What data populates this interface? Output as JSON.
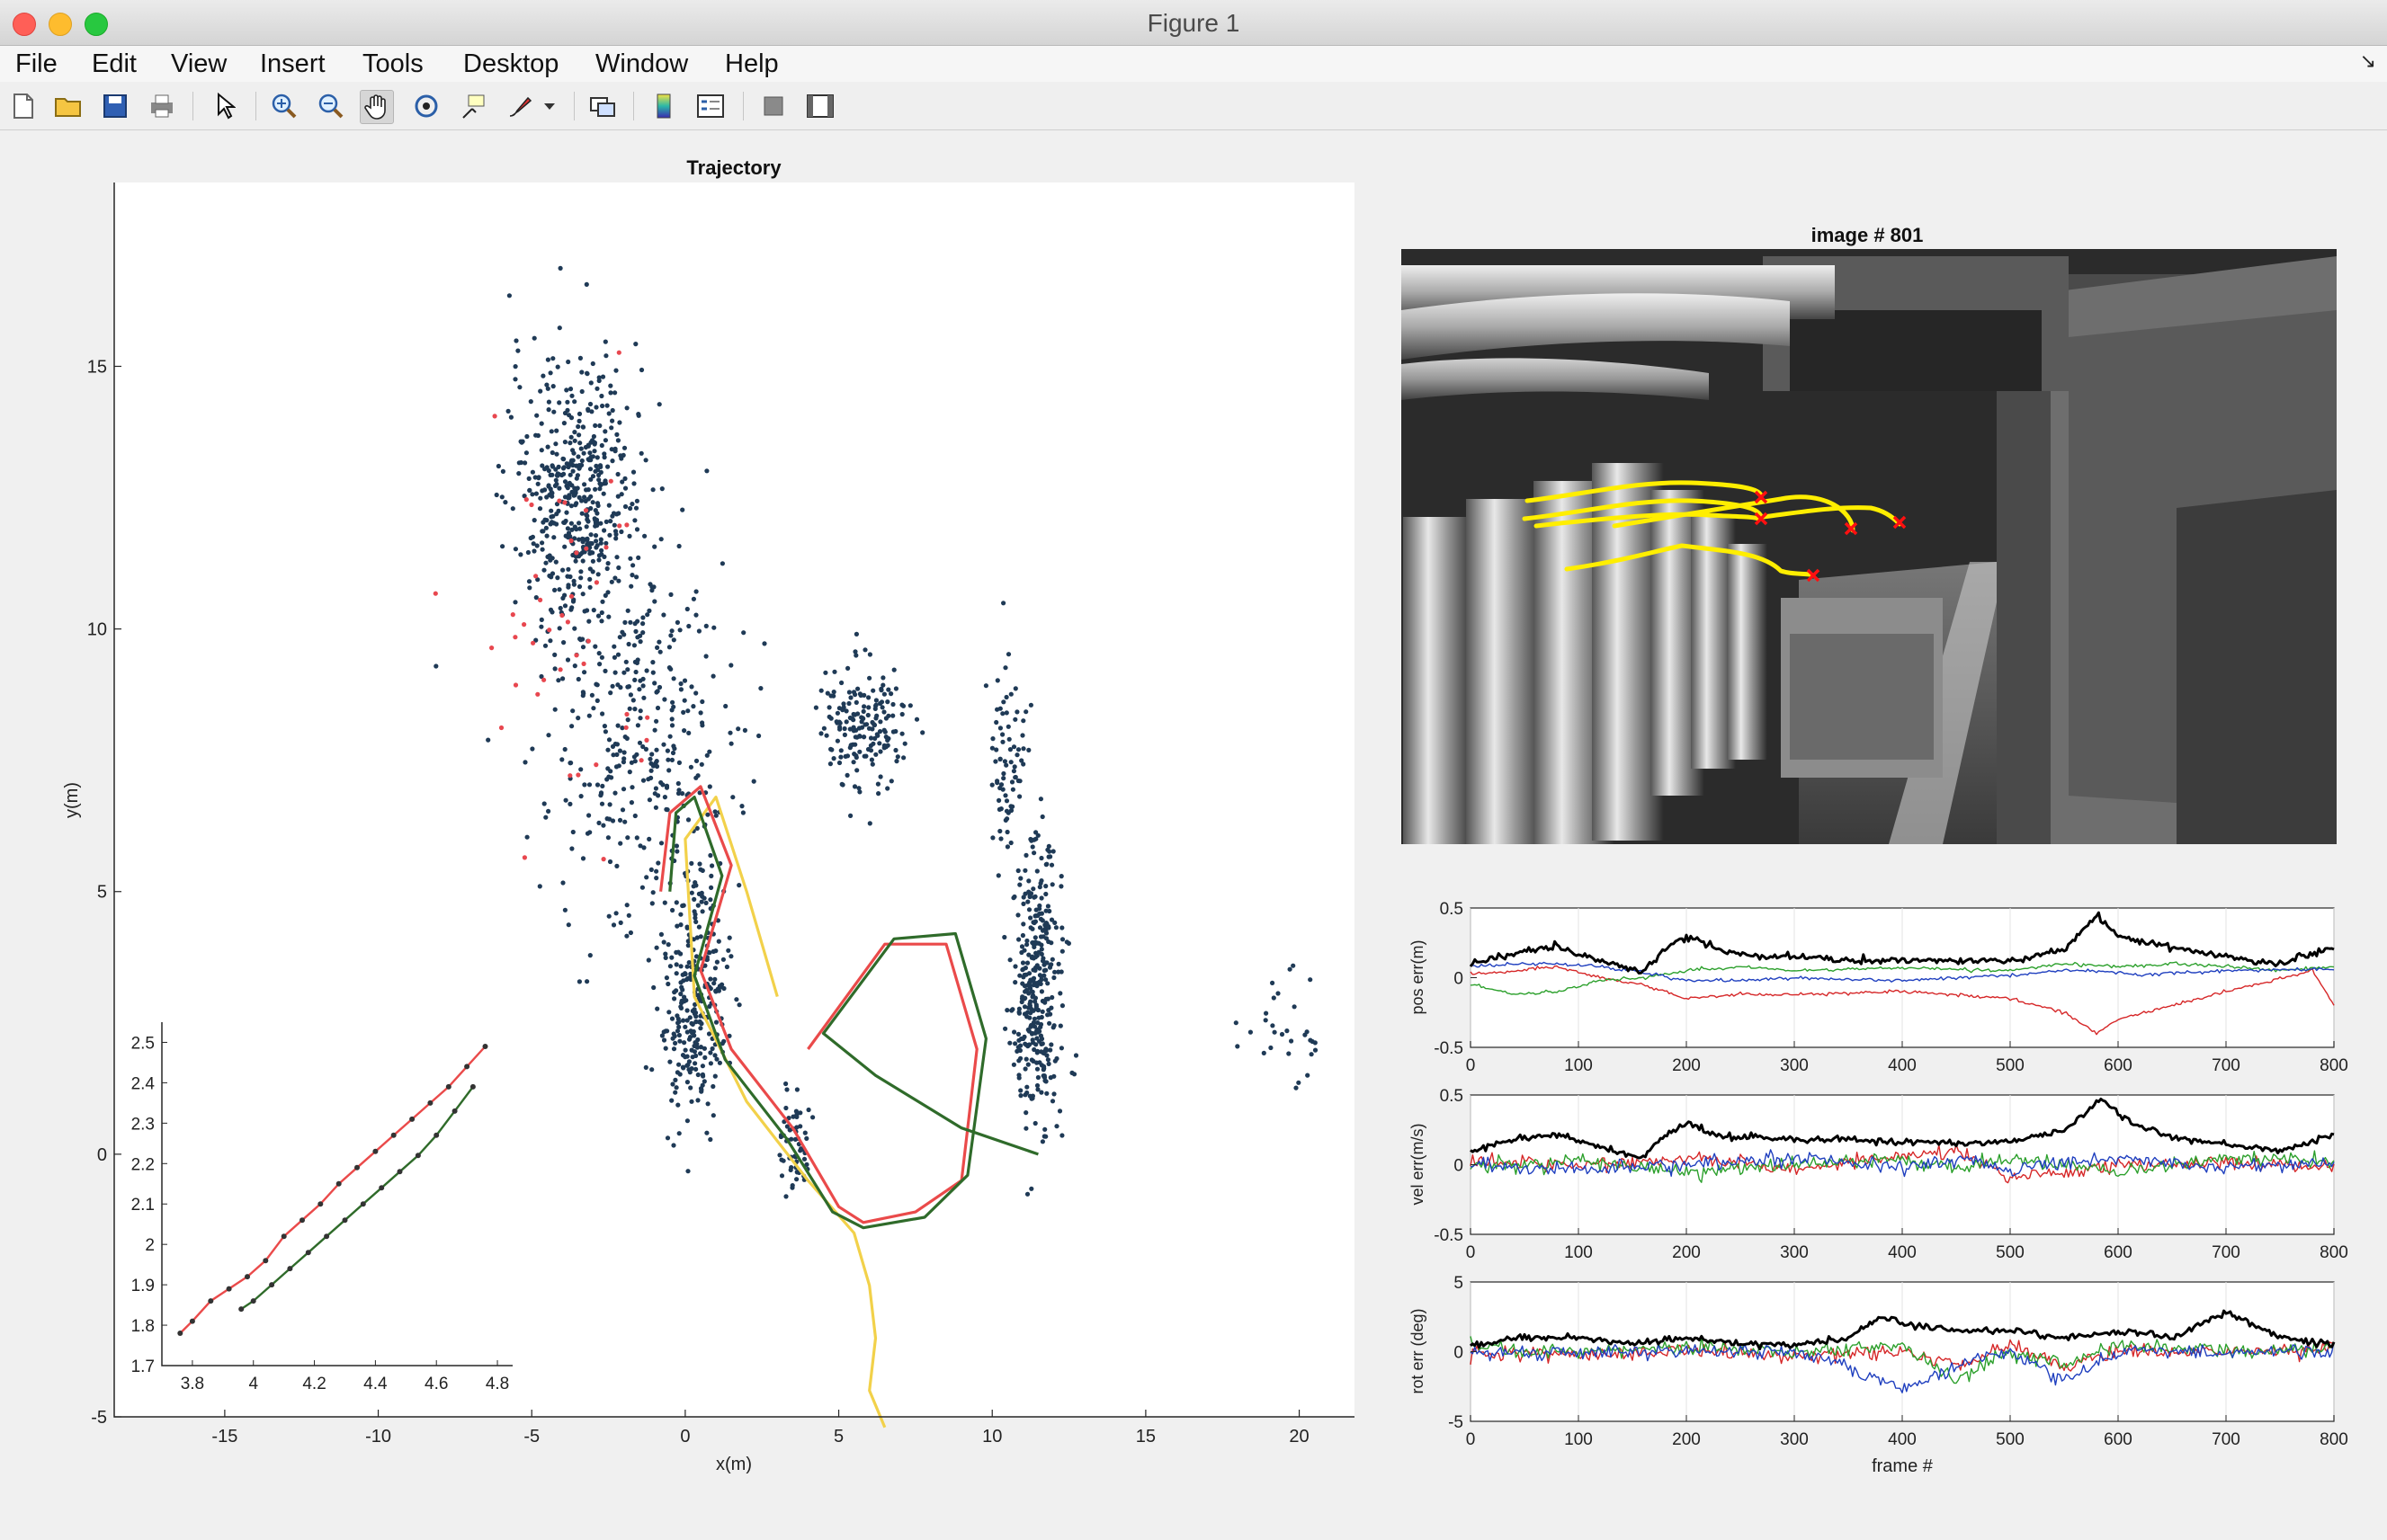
{
  "window": {
    "title": "Figure 1"
  },
  "menu": [
    "File",
    "Edit",
    "View",
    "Insert",
    "Tools",
    "Desktop",
    "Window",
    "Help"
  ],
  "toolbar_icons": [
    "new-figure-icon",
    "open-file-icon",
    "save-icon",
    "print-icon",
    "select-arrow-icon",
    "zoom-in-icon",
    "zoom-out-icon",
    "pan-hand-icon",
    "rotate-3d-icon",
    "data-cursor-icon",
    "brush-icon",
    "brush-dropdown-icon",
    "link-plot-icon",
    "colorbar-icon",
    "legend-icon",
    "hide-plot-tools-icon",
    "show-plot-tools-icon"
  ],
  "colors": {
    "points": "#1f3a56",
    "points_red": "#e8474f",
    "traj_yellow": "#f2d14a",
    "traj_red": "#ea4a4a",
    "traj_green": "#2f6b2a",
    "err_black": "#000000",
    "err_red": "#d62728",
    "err_green": "#2ca02c",
    "err_blue": "#1f3fbf",
    "feature_yellow": "#ffee00",
    "feature_x": "#ff1010"
  },
  "trajectory": {
    "title": "Trajectory",
    "xlabel": "x(m)",
    "ylabel": "y(m)",
    "xticks": [
      "-15",
      "-10",
      "-5",
      "0",
      "5",
      "10",
      "15",
      "20"
    ],
    "yticks": [
      "-5",
      "0",
      "5",
      "10",
      "15"
    ]
  },
  "inset": {
    "xticks": [
      "3.8",
      "4",
      "4.2",
      "4.4",
      "4.6",
      "4.8"
    ],
    "yticks": [
      "1.7",
      "1.8",
      "1.9",
      "2",
      "2.1",
      "2.2",
      "2.3",
      "2.4",
      "2.5"
    ]
  },
  "image": {
    "title": "image # 801"
  },
  "errors": {
    "xticks": [
      "0",
      "100",
      "200",
      "300",
      "400",
      "500",
      "600",
      "700",
      "800"
    ],
    "xlabel": "frame #",
    "pos": {
      "ylabel": "pos err(m)",
      "yticks": [
        "-0.5",
        "0",
        "0.5"
      ]
    },
    "vel": {
      "ylabel": "vel err(m/s)",
      "yticks": [
        "-0.5",
        "0",
        "0.5"
      ]
    },
    "rot": {
      "ylabel": "rot err (deg)",
      "yticks": [
        "-5",
        "0",
        "5"
      ]
    }
  },
  "chart_data": [
    {
      "type": "scatter",
      "title": "Trajectory",
      "xlabel": "x(m)",
      "ylabel": "y(m)",
      "xlim": [
        -18.6,
        21.8
      ],
      "ylim": [
        -5,
        18.5
      ],
      "series": [
        {
          "name": "",
          "role": "landmarks-blue",
          "clusters": [
            [
              -3.5,
              12.5,
              1.8,
              2.2,
              500
            ],
            [
              -1.5,
              8,
              2.5,
              3,
              350
            ],
            [
              0.3,
              3,
              0.9,
              2,
              300
            ],
            [
              5.8,
              8.2,
              1.1,
              1,
              180
            ],
            [
              11.5,
              3.2,
              0.7,
              2.2,
              350
            ],
            [
              10.5,
              7.5,
              0.5,
              1.5,
              80
            ],
            [
              3.6,
              0.2,
              0.4,
              0.8,
              60
            ],
            [
              19.5,
              2.3,
              1.2,
              0.8,
              30
            ]
          ]
        },
        {
          "name": "",
          "role": "landmarks-red",
          "clusters": [
            [
              -4,
              10,
              2.5,
              3.5,
              45
            ]
          ]
        }
      ],
      "paths": [
        {
          "role": "yellow",
          "points": [
            [
              3,
              3
            ],
            [
              2,
              5
            ],
            [
              1,
              6.8
            ],
            [
              0,
              6
            ],
            [
              0.3,
              3
            ],
            [
              2,
              1
            ],
            [
              4,
              -0.5
            ],
            [
              5.5,
              -1.5
            ],
            [
              6,
              -2.5
            ],
            [
              6.2,
              -3.5
            ],
            [
              6,
              -4.5
            ],
            [
              6.5,
              -5.2
            ]
          ]
        },
        {
          "role": "red",
          "points": [
            [
              -0.8,
              5
            ],
            [
              -0.5,
              6.5
            ],
            [
              0.5,
              7
            ],
            [
              1.5,
              5.5
            ],
            [
              0.5,
              3.5
            ],
            [
              1.5,
              2
            ],
            [
              3.5,
              0.5
            ],
            [
              5,
              -1
            ],
            [
              5.8,
              -1.3
            ],
            [
              7.5,
              -1.1
            ],
            [
              9,
              -0.5
            ],
            [
              9.5,
              2
            ],
            [
              8.5,
              4
            ],
            [
              6.5,
              4
            ],
            [
              4,
              2
            ]
          ]
        },
        {
          "role": "green",
          "points": [
            [
              -0.5,
              5
            ],
            [
              -0.3,
              6.5
            ],
            [
              0.3,
              6.8
            ],
            [
              1.2,
              5.3
            ],
            [
              0.3,
              3.4
            ],
            [
              1.3,
              1.8
            ],
            [
              3.3,
              0.3
            ],
            [
              4.8,
              -1.1
            ],
            [
              5.8,
              -1.4
            ],
            [
              7.8,
              -1.2
            ],
            [
              9.2,
              -0.4
            ],
            [
              9.8,
              2.2
            ],
            [
              8.8,
              4.2
            ],
            [
              6.8,
              4.1
            ],
            [
              4.5,
              2.3
            ],
            [
              6.2,
              1.5
            ],
            [
              9,
              0.5
            ],
            [
              11.5,
              0
            ]
          ]
        }
      ]
    },
    {
      "type": "line",
      "inset": true,
      "xlim": [
        3.7,
        4.85
      ],
      "ylim": [
        1.7,
        2.55
      ],
      "series": [
        {
          "name": "",
          "role": "red",
          "x": [
            3.76,
            3.8,
            3.86,
            3.92,
            3.98,
            4.04,
            4.1,
            4.16,
            4.22,
            4.28,
            4.34,
            4.4,
            4.46,
            4.52,
            4.58,
            4.64,
            4.7,
            4.76
          ],
          "y": [
            1.78,
            1.81,
            1.86,
            1.89,
            1.92,
            1.96,
            2.02,
            2.06,
            2.1,
            2.15,
            2.19,
            2.23,
            2.27,
            2.31,
            2.35,
            2.39,
            2.44,
            2.49
          ]
        },
        {
          "name": "",
          "role": "green",
          "x": [
            3.96,
            4.0,
            4.06,
            4.12,
            4.18,
            4.24,
            4.3,
            4.36,
            4.42,
            4.48,
            4.54,
            4.6,
            4.66,
            4.72
          ],
          "y": [
            1.84,
            1.86,
            1.9,
            1.94,
            1.98,
            2.02,
            2.06,
            2.1,
            2.14,
            2.18,
            2.22,
            2.27,
            2.33,
            2.39
          ]
        }
      ]
    },
    {
      "type": "line",
      "title": "",
      "xlabel": "",
      "ylabel": "pos err(m)",
      "xlim": [
        0,
        800
      ],
      "ylim": [
        -0.5,
        0.5
      ],
      "series": [
        {
          "name": "",
          "role": "black",
          "x": [
            0,
            40,
            80,
            120,
            160,
            180,
            200,
            230,
            260,
            300,
            350,
            400,
            450,
            500,
            550,
            580,
            600,
            650,
            700,
            750,
            790,
            800
          ],
          "y": [
            0.1,
            0.18,
            0.22,
            0.12,
            0.05,
            0.2,
            0.3,
            0.2,
            0.15,
            0.15,
            0.12,
            0.12,
            0.12,
            0.12,
            0.2,
            0.45,
            0.3,
            0.22,
            0.15,
            0.1,
            0.2,
            0.22
          ]
        },
        {
          "name": "",
          "role": "green",
          "x": [
            0,
            40,
            80,
            120,
            160,
            200,
            250,
            300,
            400,
            500,
            550,
            600,
            650,
            700,
            750,
            800
          ],
          "y": [
            -0.05,
            -0.12,
            -0.1,
            -0.02,
            0,
            0.05,
            0.08,
            0.05,
            0.07,
            0.05,
            0.1,
            0.08,
            0.1,
            0.08,
            0.05,
            0.08
          ]
        },
        {
          "name": "",
          "role": "blue",
          "x": [
            0,
            40,
            80,
            120,
            160,
            200,
            250,
            300,
            400,
            500,
            550,
            580,
            620,
            700,
            800
          ],
          "y": [
            0.08,
            0.1,
            0.1,
            0.08,
            0.04,
            -0.02,
            -0.02,
            0,
            -0.02,
            0.02,
            0.05,
            0.05,
            0.02,
            0.05,
            0.06
          ]
        },
        {
          "name": "",
          "role": "red",
          "x": [
            0,
            40,
            80,
            120,
            160,
            200,
            250,
            300,
            400,
            500,
            550,
            580,
            600,
            650,
            700,
            780,
            800
          ],
          "y": [
            0.02,
            0.05,
            0.08,
            0,
            -0.05,
            -0.15,
            -0.12,
            -0.12,
            -0.1,
            -0.15,
            -0.25,
            -0.4,
            -0.3,
            -0.2,
            -0.1,
            0.05,
            -0.2
          ]
        }
      ]
    },
    {
      "type": "line",
      "title": "",
      "xlabel": "",
      "ylabel": "vel err(m/s)",
      "xlim": [
        0,
        800
      ],
      "ylim": [
        -0.5,
        0.5
      ],
      "series": [
        {
          "name": "",
          "role": "black",
          "x": [
            0,
            40,
            80,
            120,
            160,
            180,
            200,
            230,
            260,
            300,
            350,
            400,
            450,
            500,
            550,
            585,
            610,
            650,
            700,
            750,
            790,
            800
          ],
          "y": [
            0.1,
            0.18,
            0.22,
            0.12,
            0.05,
            0.2,
            0.3,
            0.2,
            0.2,
            0.18,
            0.18,
            0.16,
            0.16,
            0.16,
            0.25,
            0.48,
            0.3,
            0.2,
            0.15,
            0.1,
            0.2,
            0.22
          ]
        },
        {
          "name": "",
          "role": "green",
          "x": [
            0,
            100,
            200,
            300,
            400,
            450,
            500,
            600,
            700,
            800
          ],
          "y": [
            -0.02,
            0.02,
            -0.05,
            0,
            0.03,
            -0.02,
            0.05,
            -0.05,
            0.05,
            0.02
          ]
        },
        {
          "name": "",
          "role": "blue",
          "x": [
            0,
            100,
            200,
            300,
            400,
            450,
            500,
            600,
            700,
            800
          ],
          "y": [
            0.01,
            -0.05,
            0,
            0.05,
            -0.02,
            0.04,
            -0.03,
            0.05,
            -0.02,
            0.02
          ]
        },
        {
          "name": "",
          "role": "red",
          "x": [
            0,
            100,
            200,
            300,
            400,
            450,
            500,
            600,
            700,
            800
          ],
          "y": [
            0.03,
            0,
            0.05,
            -0.03,
            0.05,
            0.1,
            -0.1,
            0,
            0.02,
            -0.02
          ]
        }
      ]
    },
    {
      "type": "line",
      "title": "",
      "xlabel": "frame #",
      "ylabel": "rot err (deg)",
      "xlim": [
        0,
        800
      ],
      "ylim": [
        -5,
        5
      ],
      "series": [
        {
          "name": "",
          "role": "black",
          "x": [
            0,
            50,
            100,
            150,
            200,
            250,
            300,
            350,
            380,
            400,
            450,
            500,
            550,
            600,
            650,
            700,
            750,
            800
          ],
          "y": [
            0.5,
            1,
            1,
            0.5,
            1,
            0.5,
            0.5,
            1,
            2.5,
            2,
            1.5,
            1.5,
            1,
            1.5,
            1,
            2.8,
            1,
            0.5
          ]
        },
        {
          "name": "",
          "role": "red",
          "x": [
            0,
            100,
            200,
            300,
            400,
            450,
            500,
            550,
            600,
            700,
            800
          ],
          "y": [
            0,
            -0.3,
            0,
            -0.3,
            0,
            -1,
            0.5,
            -1,
            0,
            0,
            0.2
          ]
        },
        {
          "name": "",
          "role": "green",
          "x": [
            0,
            100,
            200,
            300,
            400,
            450,
            500,
            550,
            600,
            700,
            800
          ],
          "y": [
            0.3,
            0,
            0.3,
            0,
            0.5,
            -2,
            0,
            -1,
            0.5,
            0,
            0.3
          ]
        },
        {
          "name": "",
          "role": "blue",
          "x": [
            0,
            100,
            200,
            300,
            350,
            400,
            450,
            500,
            550,
            600,
            700,
            800
          ],
          "y": [
            0,
            0,
            0,
            0,
            -1,
            -2.8,
            -1,
            0,
            -2,
            0,
            0,
            0
          ]
        }
      ]
    }
  ]
}
